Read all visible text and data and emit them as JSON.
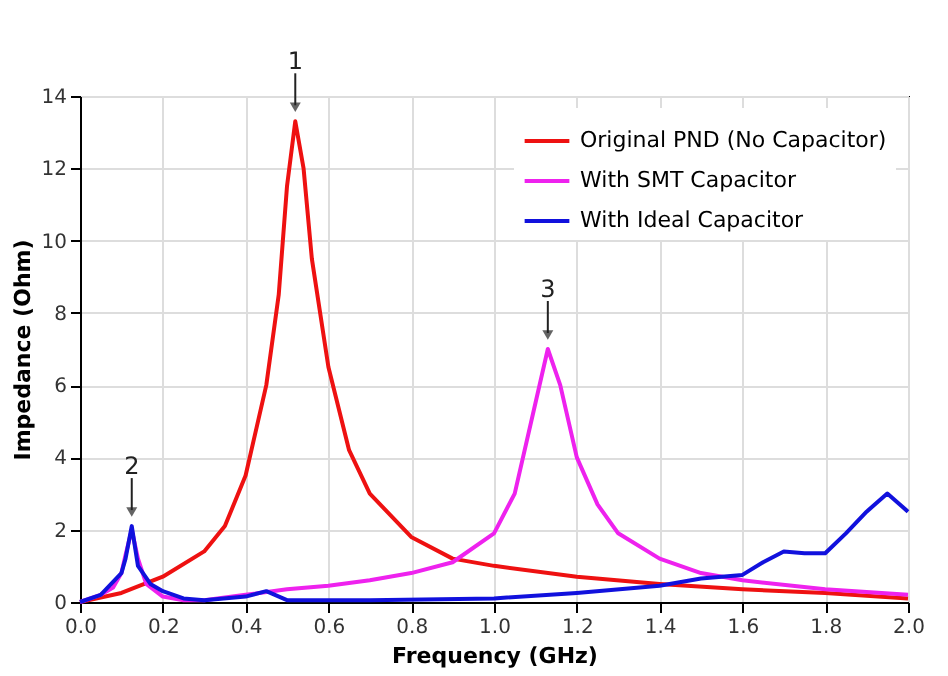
{
  "chart_data": {
    "type": "line",
    "xlabel": "Frequency (GHz)",
    "ylabel": "Impedance (Ohm)",
    "xlim": [
      0,
      2
    ],
    "xticks": [
      {
        "value": 0,
        "label": "0.0"
      },
      0.2,
      0.4,
      0.6,
      0.8,
      {
        "value": 1,
        "label": "1.0"
      },
      1.2,
      1.4,
      1.6,
      1.8,
      {
        "value": 2,
        "label": "2.0"
      }
    ],
    "ylim": [
      0,
      14
    ],
    "yticks": [
      0,
      2,
      4,
      6,
      8,
      10,
      12,
      14
    ],
    "grid": true,
    "legend": "top right",
    "marker": "none",
    "line_style": "solid",
    "series": [
      {
        "name": "Original PND (No Capacitor)",
        "color": "#ee1111",
        "x": [
          0,
          0.1,
          0.2,
          0.3,
          0.35,
          0.4,
          0.45,
          0.48,
          0.5,
          0.52,
          0.54,
          0.56,
          0.6,
          0.65,
          0.7,
          0.8,
          0.9,
          1.0,
          1.2,
          1.4,
          1.6,
          1.8,
          2.0
        ],
        "values": [
          0,
          0.25,
          0.7,
          1.4,
          2.1,
          3.5,
          6,
          8.5,
          11.5,
          13.3,
          12,
          9.5,
          6.5,
          4.2,
          3,
          1.8,
          1.2,
          1.0,
          0.7,
          0.5,
          0.35,
          0.25,
          0.1
        ]
      },
      {
        "name": "With SMT Capacitor",
        "color": "#ee22ee",
        "x": [
          0,
          0.05,
          0.08,
          0.1,
          0.11,
          0.125,
          0.14,
          0.16,
          0.2,
          0.25,
          0.3,
          0.4,
          0.5,
          0.6,
          0.7,
          0.8,
          0.9,
          1.0,
          1.05,
          1.1,
          1.13,
          1.16,
          1.2,
          1.25,
          1.3,
          1.4,
          1.5,
          1.6,
          1.8,
          2.0
        ],
        "values": [
          0,
          0.2,
          0.4,
          0.8,
          1.3,
          2.0,
          1.2,
          0.5,
          0.15,
          0.05,
          0.05,
          0.2,
          0.35,
          0.45,
          0.6,
          0.8,
          1.1,
          1.9,
          3.0,
          5.5,
          7.0,
          6.0,
          4.0,
          2.7,
          1.9,
          1.2,
          0.8,
          0.6,
          0.35,
          0.2
        ]
      },
      {
        "name": "With Ideal Capacitor",
        "color": "#1111dd",
        "x": [
          0,
          0.05,
          0.1,
          0.11,
          0.125,
          0.14,
          0.17,
          0.2,
          0.25,
          0.3,
          0.4,
          0.45,
          0.5,
          0.7,
          1.0,
          1.2,
          1.4,
          1.5,
          1.55,
          1.6,
          1.65,
          1.7,
          1.75,
          1.8,
          1.85,
          1.9,
          1.95,
          2.0
        ],
        "values": [
          0,
          0.2,
          0.8,
          1.2,
          2.1,
          1.0,
          0.5,
          0.3,
          0.1,
          0.05,
          0.15,
          0.3,
          0.05,
          0.05,
          0.1,
          0.25,
          0.45,
          0.65,
          0.7,
          0.75,
          1.1,
          1.4,
          1.35,
          1.35,
          1.9,
          2.5,
          3.0,
          2.5
        ]
      }
    ],
    "annotations": [
      {
        "text": "1",
        "x": 0.52,
        "y": 13.3
      },
      {
        "text": "2",
        "x": 0.125,
        "y": 2.1
      },
      {
        "text": "3",
        "x": 1.13,
        "y": 7.0
      }
    ]
  }
}
